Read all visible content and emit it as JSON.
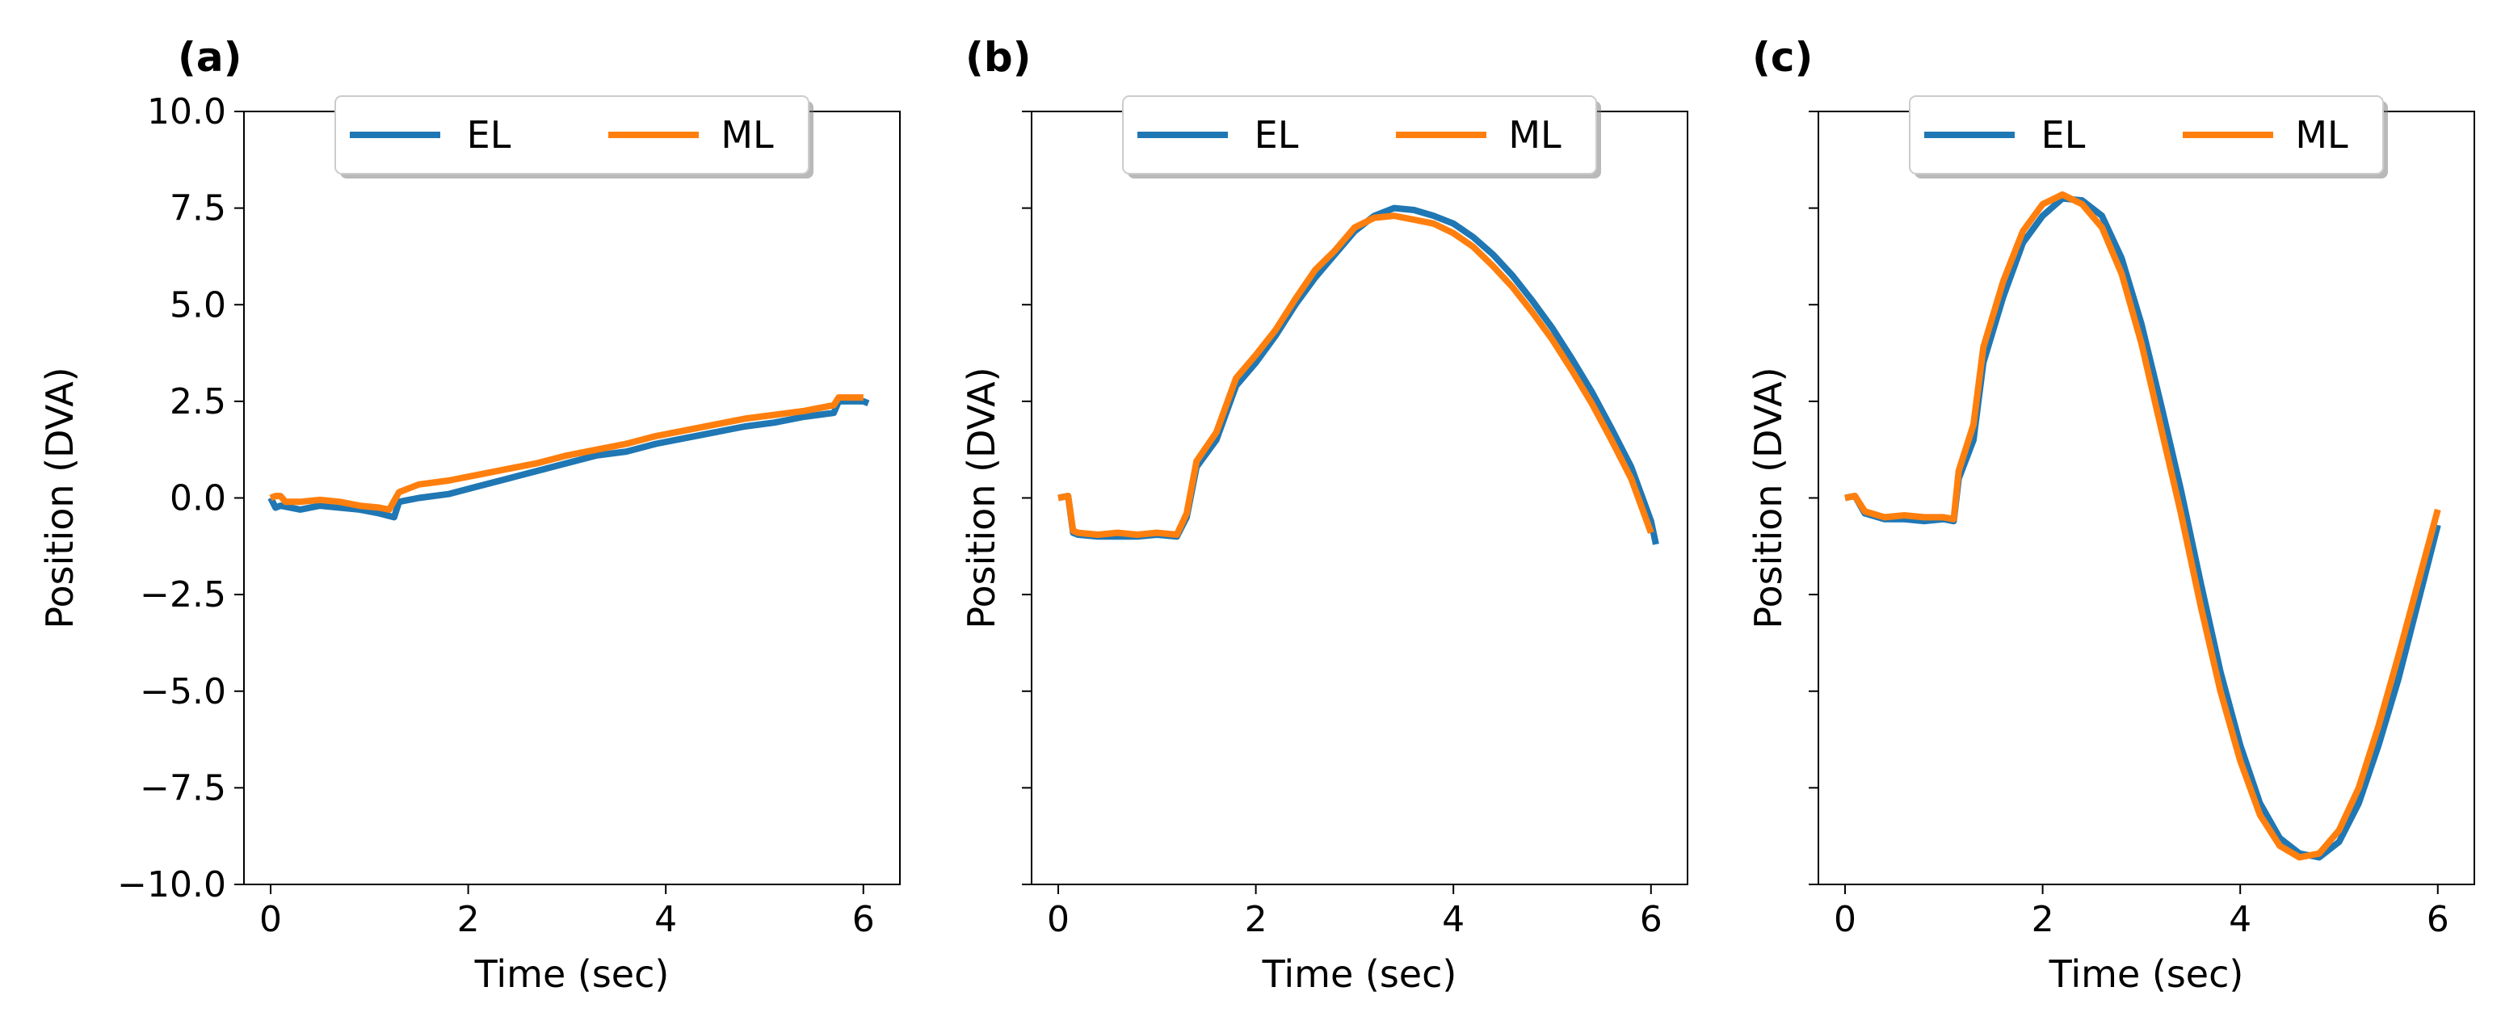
{
  "figure": {
    "colors": {
      "EL": "#1f77b4",
      "ML": "#ff7f0e"
    }
  },
  "chart_data": [
    {
      "type": "line",
      "panel_label": "(a)",
      "xlabel": "Time (sec)",
      "ylabel": "Position (DVA)",
      "xlim": [
        -0.27,
        6.37
      ],
      "ylim": [
        -10.0,
        10.0
      ],
      "xticks": [
        0,
        2,
        4,
        6
      ],
      "xtick_labels": [
        "0",
        "2",
        "4",
        "6"
      ],
      "yticks": [
        10.0,
        7.5,
        5.0,
        2.5,
        0.0,
        -2.5,
        -5.0,
        -7.5,
        -10.0
      ],
      "ytick_labels": [
        "10.0",
        "7.5",
        "5.0",
        "2.5",
        "0.0",
        "−2.5",
        "−5.0",
        "−7.5",
        "−10.0"
      ],
      "show_ytick_labels": true,
      "legend": {
        "entries": [
          "EL",
          "ML"
        ],
        "placement": "upper center"
      },
      "series": [
        {
          "name": "EL",
          "x": [
            0,
            0.05,
            0.1,
            0.3,
            0.5,
            0.7,
            0.9,
            1.1,
            1.25,
            1.3,
            1.5,
            1.8,
            2.1,
            2.4,
            2.7,
            3.0,
            3.3,
            3.6,
            3.9,
            4.2,
            4.5,
            4.8,
            5.1,
            5.4,
            5.7,
            5.75,
            6.0,
            6.05
          ],
          "y": [
            0.0,
            -0.25,
            -0.2,
            -0.3,
            -0.2,
            -0.25,
            -0.3,
            -0.4,
            -0.5,
            -0.1,
            0.0,
            0.1,
            0.3,
            0.5,
            0.7,
            0.9,
            1.1,
            1.2,
            1.4,
            1.55,
            1.7,
            1.85,
            1.95,
            2.1,
            2.2,
            2.5,
            2.5,
            2.45
          ]
        },
        {
          "name": "ML",
          "x": [
            0,
            0.05,
            0.1,
            0.15,
            0.3,
            0.5,
            0.7,
            0.9,
            1.1,
            1.2,
            1.3,
            1.5,
            1.8,
            2.1,
            2.4,
            2.7,
            3.0,
            3.3,
            3.6,
            3.9,
            4.2,
            4.5,
            4.8,
            5.1,
            5.4,
            5.7,
            5.75,
            6.0
          ],
          "y": [
            0.0,
            0.05,
            0.05,
            -0.1,
            -0.1,
            -0.05,
            -0.1,
            -0.2,
            -0.25,
            -0.3,
            0.15,
            0.35,
            0.45,
            0.6,
            0.75,
            0.9,
            1.1,
            1.25,
            1.4,
            1.6,
            1.75,
            1.9,
            2.05,
            2.15,
            2.25,
            2.4,
            2.6,
            2.6
          ]
        }
      ]
    },
    {
      "type": "line",
      "panel_label": "(b)",
      "xlabel": "Time (sec)",
      "ylabel": "Position (DVA)",
      "xlim": [
        -0.27,
        6.37
      ],
      "ylim": [
        -10.0,
        10.0
      ],
      "xticks": [
        0,
        2,
        4,
        6
      ],
      "xtick_labels": [
        "0",
        "2",
        "4",
        "6"
      ],
      "yticks": [
        10.0,
        7.5,
        5.0,
        2.5,
        0.0,
        -2.5,
        -5.0,
        -7.5,
        -10.0
      ],
      "ytick_labels": [],
      "show_ytick_labels": false,
      "legend": {
        "entries": [
          "EL",
          "ML"
        ],
        "placement": "upper center"
      },
      "series": [
        {
          "name": "EL",
          "x": [
            0,
            0.1,
            0.15,
            0.2,
            0.4,
            0.6,
            0.8,
            1.0,
            1.2,
            1.3,
            1.4,
            1.6,
            1.8,
            2.0,
            2.2,
            2.4,
            2.6,
            2.8,
            3.0,
            3.2,
            3.4,
            3.6,
            3.8,
            4.0,
            4.2,
            4.4,
            4.6,
            4.8,
            5.0,
            5.2,
            5.4,
            5.6,
            5.8,
            6.0,
            6.05
          ],
          "y": [
            0.0,
            0.05,
            -0.9,
            -0.95,
            -1.0,
            -1.0,
            -1.0,
            -0.95,
            -1.0,
            -0.5,
            0.8,
            1.5,
            2.9,
            3.5,
            4.2,
            5.0,
            5.7,
            6.3,
            6.9,
            7.3,
            7.5,
            7.45,
            7.3,
            7.1,
            6.75,
            6.3,
            5.75,
            5.1,
            4.4,
            3.6,
            2.75,
            1.8,
            0.8,
            -0.6,
            -1.2
          ]
        },
        {
          "name": "ML",
          "x": [
            0,
            0.1,
            0.15,
            0.2,
            0.4,
            0.6,
            0.8,
            1.0,
            1.2,
            1.3,
            1.4,
            1.6,
            1.8,
            2.0,
            2.2,
            2.4,
            2.6,
            2.8,
            3.0,
            3.2,
            3.4,
            3.6,
            3.8,
            4.0,
            4.2,
            4.4,
            4.6,
            4.8,
            5.0,
            5.2,
            5.4,
            5.6,
            5.8,
            6.0
          ],
          "y": [
            0.0,
            0.05,
            -0.85,
            -0.9,
            -0.95,
            -0.9,
            -0.95,
            -0.9,
            -0.95,
            -0.4,
            0.95,
            1.7,
            3.1,
            3.7,
            4.35,
            5.15,
            5.9,
            6.4,
            7.0,
            7.25,
            7.3,
            7.2,
            7.1,
            6.85,
            6.5,
            6.0,
            5.45,
            4.8,
            4.1,
            3.3,
            2.45,
            1.5,
            0.5,
            -0.9
          ]
        }
      ]
    },
    {
      "type": "line",
      "panel_label": "(c)",
      "xlabel": "Time (sec)",
      "ylabel": "Position (DVA)",
      "xlim": [
        -0.27,
        6.37
      ],
      "ylim": [
        -10.0,
        10.0
      ],
      "xticks": [
        0,
        2,
        4,
        6
      ],
      "xtick_labels": [
        "0",
        "2",
        "4",
        "6"
      ],
      "yticks": [
        10.0,
        7.5,
        5.0,
        2.5,
        0.0,
        -2.5,
        -5.0,
        -7.5,
        -10.0
      ],
      "ytick_labels": [],
      "show_ytick_labels": false,
      "legend": {
        "entries": [
          "EL",
          "ML"
        ],
        "placement": "upper center"
      },
      "series": [
        {
          "name": "EL",
          "x": [
            0,
            0.1,
            0.2,
            0.4,
            0.6,
            0.8,
            1.0,
            1.1,
            1.15,
            1.3,
            1.4,
            1.6,
            1.8,
            2.0,
            2.2,
            2.4,
            2.6,
            2.8,
            3.0,
            3.2,
            3.4,
            3.6,
            3.8,
            4.0,
            4.2,
            4.4,
            4.6,
            4.8,
            5.0,
            5.2,
            5.4,
            5.6,
            5.8,
            6.0
          ],
          "y": [
            0.0,
            0.05,
            -0.4,
            -0.55,
            -0.55,
            -0.6,
            -0.55,
            -0.6,
            0.5,
            1.5,
            3.5,
            5.2,
            6.6,
            7.3,
            7.75,
            7.7,
            7.3,
            6.2,
            4.5,
            2.4,
            0.2,
            -2.2,
            -4.5,
            -6.4,
            -7.9,
            -8.8,
            -9.2,
            -9.3,
            -8.9,
            -7.9,
            -6.4,
            -4.7,
            -2.7,
            -0.7
          ]
        },
        {
          "name": "ML",
          "x": [
            0,
            0.1,
            0.2,
            0.4,
            0.6,
            0.8,
            1.0,
            1.1,
            1.15,
            1.3,
            1.4,
            1.6,
            1.8,
            2.0,
            2.2,
            2.4,
            2.6,
            2.8,
            3.0,
            3.2,
            3.4,
            3.6,
            3.8,
            4.0,
            4.2,
            4.4,
            4.6,
            4.8,
            5.0,
            5.2,
            5.4,
            5.6,
            5.8,
            6.0
          ],
          "y": [
            0.0,
            0.05,
            -0.35,
            -0.5,
            -0.45,
            -0.5,
            -0.5,
            -0.55,
            0.7,
            1.9,
            3.9,
            5.6,
            6.9,
            7.6,
            7.85,
            7.6,
            7.0,
            5.8,
            4.0,
            1.8,
            -0.4,
            -2.8,
            -5.0,
            -6.8,
            -8.2,
            -9.0,
            -9.3,
            -9.2,
            -8.6,
            -7.5,
            -5.9,
            -4.1,
            -2.2,
            -0.3
          ]
        }
      ]
    }
  ]
}
